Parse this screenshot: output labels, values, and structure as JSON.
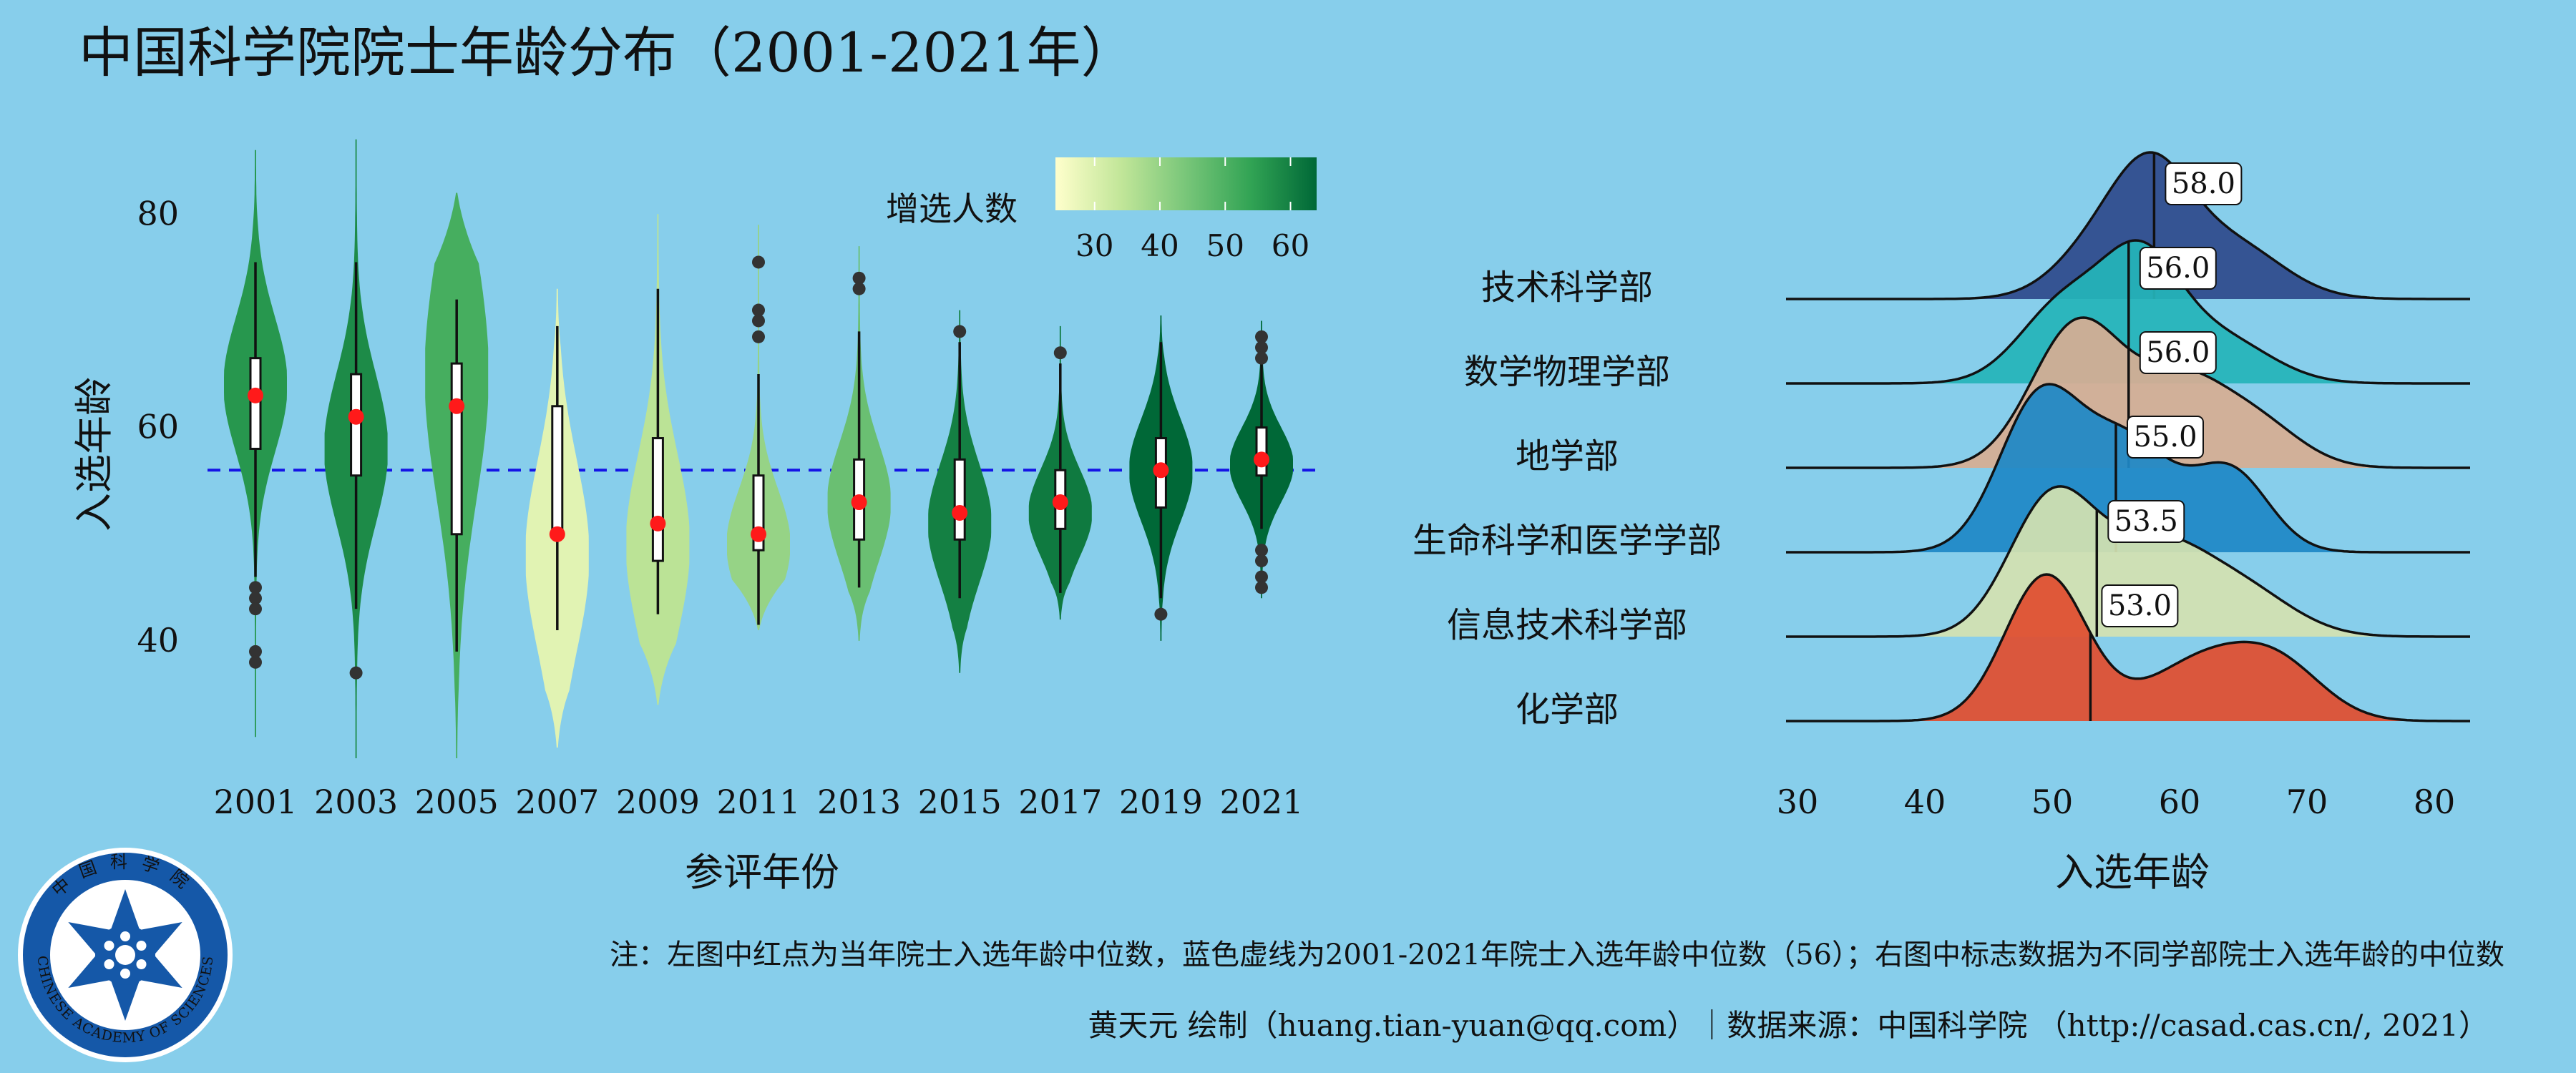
{
  "title": "中国科学院院士年龄分布（2001-2021年）",
  "colors": {
    "background": "#87ceeb",
    "median_line": "#1414e6",
    "median_point": "#ff1a1a",
    "gradient": [
      "#ffffcc",
      "#c2e699",
      "#78c679",
      "#31a354",
      "#006837"
    ]
  },
  "logo": {
    "text": "CHINESE ACADEMY OF SCIENCES",
    "chinese": "中国科学院"
  },
  "note": "注：左图中红点为当年院士入选年龄中位数，蓝色虚线为2001-2021年院士入选年龄中位数（56）；右图中标志数据为不同学部院士入选年龄的中位数",
  "credit": "黄天元 绘制（huang.tian-yuan@qq.com）｜数据来源：中国科学院 （http://casad.cas.cn/, 2021）",
  "chart_data": [
    {
      "type": "violin",
      "xlabel": "参评年份",
      "ylabel": "入选年龄",
      "yticks": [
        40,
        60,
        80
      ],
      "ylim": [
        29,
        88
      ],
      "reference_line": 56,
      "colorbar": {
        "title": "增选人数",
        "ticks": [
          30,
          40,
          50,
          60
        ],
        "range": [
          24,
          64
        ]
      },
      "categories": [
        "2001",
        "2003",
        "2005",
        "2007",
        "2009",
        "2011",
        "2013",
        "2015",
        "2017",
        "2019",
        "2021"
      ],
      "groups": [
        {
          "year": "2001",
          "count": 56,
          "min": 31,
          "max": 86,
          "whisker": [
            46,
            75.5
          ],
          "q1": 58,
          "q3": 66.5,
          "median": 63,
          "mode": 64,
          "outliers": [
            45,
            44,
            43,
            39,
            38
          ]
        },
        {
          "year": "2003",
          "count": 58,
          "min": 29,
          "max": 87,
          "whisker": [
            43,
            75.5
          ],
          "q1": 55.5,
          "q3": 65,
          "median": 61,
          "mode": 58,
          "outliers": [
            37
          ]
        },
        {
          "year": "2005",
          "count": 51,
          "min": 29,
          "max": 82,
          "whisker": [
            39,
            72
          ],
          "q1": 50,
          "q3": 66,
          "median": 62,
          "mode": 65,
          "outliers": []
        },
        {
          "year": "2007",
          "count": 29,
          "min": 30,
          "max": 73,
          "whisker": [
            41,
            69.5
          ],
          "q1": 50,
          "q3": 62,
          "median": 50,
          "mode": 48,
          "outliers": []
        },
        {
          "year": "2009",
          "count": 35,
          "min": 34,
          "max": 80,
          "whisker": [
            42.5,
            73
          ],
          "q1": 47.5,
          "q3": 59,
          "median": 51,
          "mode": 49,
          "outliers": []
        },
        {
          "year": "2011",
          "count": 40,
          "min": 41,
          "max": 79,
          "whisker": [
            41.5,
            65
          ],
          "q1": 48.5,
          "q3": 55.5,
          "median": 50,
          "mode": 49,
          "outliers": [
            75.5,
            71,
            70,
            68.5
          ]
        },
        {
          "year": "2013",
          "count": 46,
          "min": 40,
          "max": 77,
          "whisker": [
            45,
            69
          ],
          "q1": 49.5,
          "q3": 57,
          "median": 53,
          "mode": 53,
          "outliers": [
            74,
            73
          ]
        },
        {
          "year": "2015",
          "count": 60,
          "min": 37,
          "max": 71,
          "whisker": [
            44,
            68
          ],
          "q1": 49.5,
          "q3": 57,
          "median": 52,
          "mode": 51,
          "outliers": [
            69
          ]
        },
        {
          "year": "2017",
          "count": 61,
          "min": 42,
          "max": 69.5,
          "whisker": [
            44.5,
            66
          ],
          "q1": 50.5,
          "q3": 56,
          "median": 53,
          "mode": 52,
          "outliers": [
            67
          ]
        },
        {
          "year": "2019",
          "count": 64,
          "min": 40,
          "max": 70.5,
          "whisker": [
            44,
            68
          ],
          "q1": 52.5,
          "q3": 59,
          "median": 56,
          "mode": 56,
          "outliers": [
            42.5
          ]
        },
        {
          "year": "2021",
          "count": 65,
          "min": 44,
          "max": 70,
          "whisker": [
            50.5,
            66
          ],
          "q1": 55.5,
          "q3": 60,
          "median": 57,
          "mode": 56.5,
          "outliers": [
            68.5,
            67.5,
            66.5,
            48.5,
            47.5,
            46,
            45
          ]
        }
      ]
    },
    {
      "type": "ridgeline",
      "xlabel": "入选年龄",
      "xticks": [
        30,
        40,
        50,
        60,
        70,
        80
      ],
      "xlim": [
        30,
        80
      ],
      "categories": [
        "化学部",
        "信息技术科学部",
        "生命科学和医学学部",
        "地学部",
        "数学物理学部",
        "技术科学部"
      ],
      "series": [
        {
          "name": "化学部",
          "color": "#e04e2f",
          "median": 53.0,
          "median_label": "53.0"
        },
        {
          "name": "信息技术科学部",
          "color": "#d3e1b0",
          "median": 53.5,
          "median_label": "53.5"
        },
        {
          "name": "生命科学和医学学部",
          "color": "#1e88c6",
          "median": 55.0,
          "median_label": "55.0"
        },
        {
          "name": "地学部",
          "color": "#d6ad92",
          "median": 56.0,
          "median_label": "56.0"
        },
        {
          "name": "数学物理学部",
          "color": "#25b4b9",
          "median": 56.0,
          "median_label": "56.0"
        },
        {
          "name": "技术科学部",
          "color": "#2e4a8c",
          "median": 58.0,
          "median_label": "58.0"
        }
      ]
    }
  ]
}
